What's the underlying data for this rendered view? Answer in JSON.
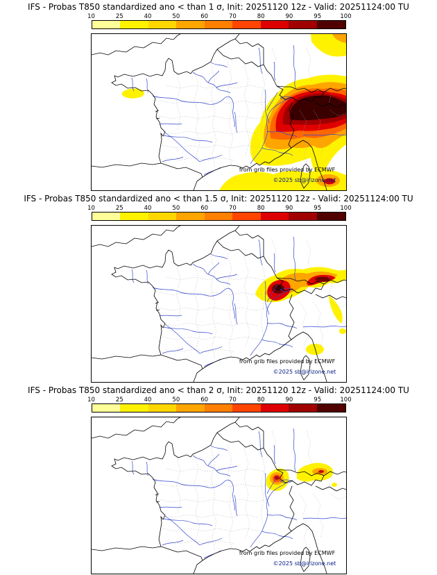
{
  "colorbar": {
    "ticks": [
      "10",
      "25",
      "40",
      "50",
      "60",
      "70",
      "80",
      "90",
      "95",
      "100"
    ],
    "colors": [
      "#FFFF99",
      "#FFF200",
      "#FFD700",
      "#FFA500",
      "#FF7F00",
      "#FF4500",
      "#DD0000",
      "#A00000",
      "#500000"
    ]
  },
  "panels": [
    {
      "title": "IFS - Probas T850  standardized ano < than 1 σ, Init: 20251120 12z - Valid: 20251124:00 TU",
      "credit": "from grib files provided by ECMWF",
      "copyright": "©2025 sb@irizone.net"
    },
    {
      "title": "IFS - Probas T850  standardized ano < than 1.5 σ, Init: 20251120 12z - Valid: 20251124:00 TU",
      "credit": "from grib files provided by ECMWF",
      "copyright": "©2025 sb@irizone.net"
    },
    {
      "title": "IFS - Probas T850  standardized ano < than 2 σ, Init: 20251120 12z - Valid: 20251124:00 TU",
      "credit": "from grib files provided by ECMWF",
      "copyright": "©2025 sb@irizone.net"
    }
  ]
}
